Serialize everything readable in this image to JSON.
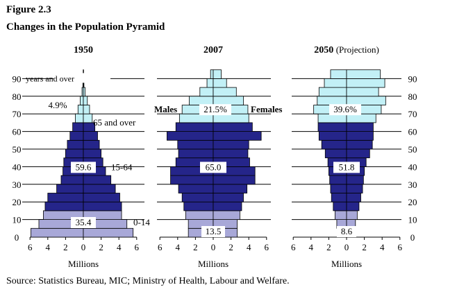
{
  "figure_label": "Figure 2.3",
  "figure_title": "Changes in the Population Pyramid",
  "source": "Source:  Statistics Bureau, MIC;  Ministry of Health, Labour and Welfare.",
  "colors": {
    "age_0_14": "#a8a8d8",
    "age_15_64": "#25258a",
    "age_65_over": "#c2f0f6",
    "bar_outline": "#000000",
    "gridline": "#000000"
  },
  "chart_data": [
    {
      "type": "bar",
      "orientation": "horizontal-population-pyramid",
      "title": "1950",
      "xlabel": "Millions",
      "xlim": [
        -6,
        6
      ],
      "x_ticks": [
        6,
        4,
        2,
        0,
        2,
        4,
        6
      ],
      "y_ticks": [
        "90",
        "80",
        "70",
        "60",
        "50",
        "40",
        "30",
        "20",
        "10",
        "0"
      ],
      "age_groups": [
        "0-4",
        "5-9",
        "10-14",
        "15-19",
        "20-24",
        "25-29",
        "30-34",
        "35-39",
        "40-44",
        "45-49",
        "50-54",
        "55-59",
        "60-64",
        "65-69",
        "70-74",
        "75-79",
        "80-84",
        "85-89",
        "90+"
      ],
      "series": [
        {
          "name": "Males",
          "values": [
            5.9,
            5.0,
            4.5,
            4.3,
            4.0,
            3.0,
            2.5,
            2.3,
            2.2,
            2.0,
            1.8,
            1.5,
            1.2,
            0.9,
            0.6,
            0.35,
            0.15,
            0.05,
            0.02
          ]
        },
        {
          "name": "Females",
          "values": [
            5.6,
            4.9,
            4.3,
            4.3,
            4.1,
            3.6,
            3.1,
            2.5,
            2.2,
            2.0,
            1.8,
            1.6,
            1.3,
            1.0,
            0.7,
            0.45,
            0.2,
            0.07,
            0.03
          ]
        }
      ],
      "annotations": {
        "share_0_14": "35.4",
        "share_15_64": "59.6",
        "share_65_over": "4.9%",
        "label_65_over": "65 and over",
        "label_15_64": "15-64",
        "label_0_14": "0-14",
        "top_label": "years and over"
      }
    },
    {
      "type": "bar",
      "orientation": "horizontal-population-pyramid",
      "title": "2007",
      "xlabel": "Millions",
      "xlim": [
        -6,
        6
      ],
      "x_ticks": [
        6,
        4,
        2,
        0,
        2,
        4,
        6
      ],
      "age_groups": [
        "0-4",
        "5-9",
        "10-14",
        "15-19",
        "20-24",
        "25-29",
        "30-34",
        "35-39",
        "40-44",
        "45-49",
        "50-54",
        "55-59",
        "60-64",
        "65-69",
        "70-74",
        "75-79",
        "80-84",
        "85-89",
        "90+"
      ],
      "series": [
        {
          "name": "Males",
          "values": [
            2.8,
            2.8,
            3.1,
            3.3,
            3.5,
            3.9,
            4.8,
            4.8,
            4.2,
            3.9,
            4.0,
            5.2,
            4.2,
            3.8,
            3.5,
            2.7,
            1.5,
            0.7,
            0.3
          ]
        },
        {
          "name": "Females",
          "values": [
            2.7,
            2.7,
            3.0,
            3.2,
            3.4,
            3.8,
            4.7,
            4.7,
            4.1,
            3.9,
            4.0,
            5.4,
            4.4,
            4.0,
            3.9,
            3.4,
            2.6,
            1.5,
            0.9
          ]
        }
      ],
      "annotations": {
        "share_0_14": "13.5",
        "share_15_64": "65.0",
        "share_65_over": "21.5%",
        "males_label": "Males",
        "females_label": "Females"
      }
    },
    {
      "type": "bar",
      "orientation": "horizontal-population-pyramid",
      "title": "2050",
      "title_suffix": "(Projection)",
      "xlabel": "Millions",
      "xlim": [
        -6,
        6
      ],
      "x_ticks": [
        6,
        4,
        2,
        0,
        2,
        4,
        6
      ],
      "y_ticks": [
        "90",
        "80",
        "70",
        "60",
        "50",
        "40",
        "30",
        "20",
        "10",
        "0"
      ],
      "age_groups": [
        "0-4",
        "5-9",
        "10-14",
        "15-19",
        "20-24",
        "25-29",
        "30-34",
        "35-39",
        "40-44",
        "45-49",
        "50-54",
        "55-59",
        "60-64",
        "65-69",
        "70-74",
        "75-79",
        "80-84",
        "85-89",
        "90+"
      ],
      "series": [
        {
          "name": "Males",
          "values": [
            1.0,
            1.1,
            1.3,
            1.5,
            1.7,
            1.8,
            1.9,
            2.0,
            2.1,
            2.4,
            2.8,
            3.1,
            3.2,
            3.2,
            3.7,
            3.3,
            3.1,
            2.5,
            1.8
          ]
        },
        {
          "name": "Females",
          "values": [
            0.9,
            1.0,
            1.2,
            1.4,
            1.6,
            1.8,
            1.9,
            2.0,
            2.2,
            2.6,
            2.9,
            3.0,
            3.0,
            3.3,
            3.9,
            4.4,
            3.6,
            4.3,
            3.8
          ]
        }
      ],
      "annotations": {
        "share_0_14": "8.6",
        "share_15_64": "51.8",
        "share_65_over": "39.6%"
      }
    }
  ]
}
